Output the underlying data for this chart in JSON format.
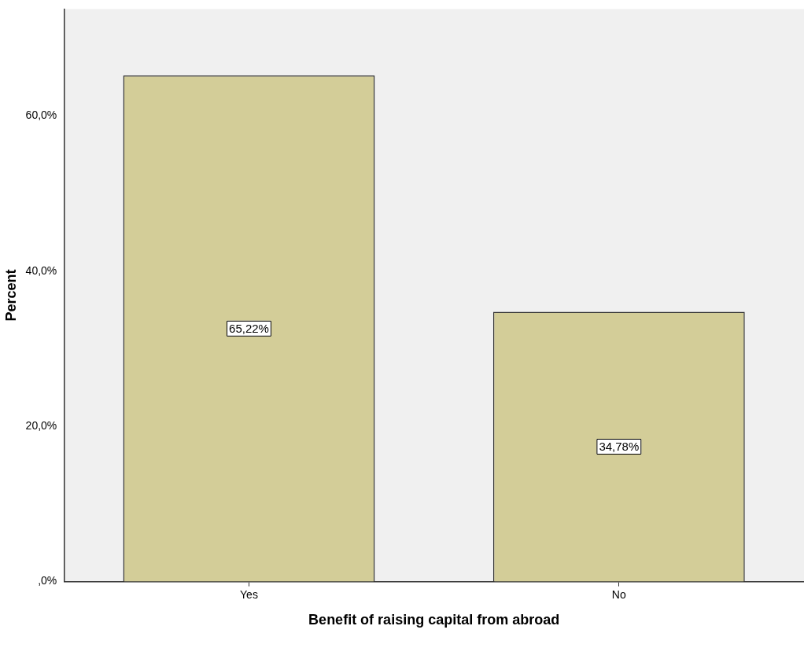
{
  "chart_data": {
    "type": "bar",
    "xlabel": "Benefit of raising capital from abroad",
    "ylabel": "Percent",
    "categories": [
      "Yes",
      "No"
    ],
    "values": [
      65.22,
      34.78
    ],
    "value_labels": [
      "65,22%",
      "34,78%"
    ],
    "color": "#d3cd98",
    "ylim": [
      0,
      73.8
    ],
    "yticks": [
      {
        "value": 0,
        "label": ",0%"
      },
      {
        "value": 20,
        "label": "20,0%"
      },
      {
        "value": 40,
        "label": "40,0%"
      },
      {
        "value": 60,
        "label": "60,0%"
      }
    ],
    "grid": false,
    "legend": false
  }
}
